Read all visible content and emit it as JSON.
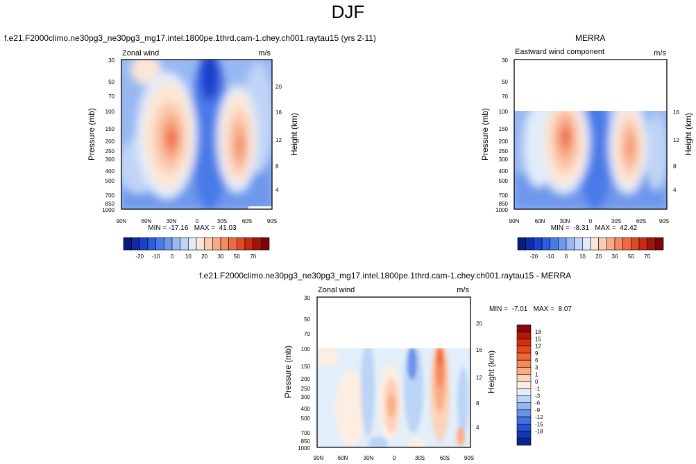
{
  "title": "DJF",
  "panels": [
    {
      "id": "model",
      "title": "f.e21.F2000climo.ne30pg3_ne30pg3_mg17.intel.1800pe.1thrd.cam-1.chey.ch001.raytau15 (yrs 2-11)",
      "left_label": "Zonal wind",
      "right_label": "m/s",
      "stats": "MIN = -17.16   MAX =  41.03"
    },
    {
      "id": "obs",
      "title": "MERRA",
      "left_label": "Eastward wind component",
      "right_label": "m/s",
      "stats": "MIN =  -8.31   MAX =  42.42"
    },
    {
      "id": "diff",
      "title": "f.e21.F2000climo.ne30pg3_ne30pg3_mg17.intel.1800pe.1thrd.cam-1.chey.ch001.raytau15 - MERRA",
      "left_label": "Zonal wind",
      "right_label": "m/s",
      "stats": "MIN =  -7.01   MAX =  8.07"
    }
  ],
  "axes": {
    "ylabel": "Pressure (mb)",
    "y2label": "Height (km)",
    "pressure_ticks": [
      "30",
      "50",
      "70",
      "100",
      "150",
      "200",
      "250",
      "300",
      "400",
      "500",
      "700",
      "850",
      "1000"
    ],
    "height_ticks": [
      "4",
      "8",
      "12",
      "16",
      "20"
    ],
    "lat_ticks": [
      "90N",
      "60N",
      "30N",
      "0",
      "30S",
      "60S",
      "90S"
    ]
  },
  "colorbar_main": {
    "labels": [
      "-20",
      "-10",
      "0",
      "10",
      "20",
      "30",
      "50",
      "70"
    ],
    "colors": [
      "#0a1a78",
      "#0f2ca6",
      "#1a40cc",
      "#2b5de0",
      "#4a7ae8",
      "#6e98ec",
      "#98b8f2",
      "#bfd4f6",
      "#e0ecfb",
      "#fde6d6",
      "#fbcab0",
      "#f8aa88",
      "#f48a64",
      "#ee6a44",
      "#e04a28",
      "#c82b14",
      "#a0150a",
      "#7c0606"
    ]
  },
  "colorbar_diff": {
    "labels": [
      "18",
      "15",
      "12",
      "9",
      "6",
      "3",
      "1",
      "0",
      "-1",
      "-3",
      "-6",
      "-9",
      "-12",
      "-15",
      "-18"
    ],
    "colors": [
      "#8c0808",
      "#b4180c",
      "#d22e14",
      "#e8461e",
      "#f26636",
      "#f6895a",
      "#f9ae86",
      "#fcd2b8",
      "#fdeee2",
      "#e2eefa",
      "#bcd4f6",
      "#94b6f0",
      "#6a92e8",
      "#4470e0",
      "#2650d4",
      "#1436b4",
      "#0b2490"
    ]
  },
  "chart_data": [
    {
      "type": "heatmap",
      "title": "f.e21.F2000climo.ne30pg3_ne30pg3_mg17.intel.1800pe.1thrd.cam-1.chey.ch001.raytau15 (yrs 2-11)",
      "xlabel": "",
      "ylabel": "Pressure (mb)",
      "y2label": "Height (km)",
      "units": "m/s",
      "min": -17.16,
      "max": 41.03,
      "x_range": [
        "90N",
        "90S"
      ],
      "y_range_mb": [
        1000,
        30
      ],
      "features": [
        {
          "lat": 25,
          "p": 200,
          "value": 38
        },
        {
          "lat": -50,
          "p": 200,
          "value": 36
        },
        {
          "lat": -2,
          "p": 30,
          "value": -17
        },
        {
          "lat": 58,
          "p": 30,
          "value": 18
        }
      ]
    },
    {
      "type": "heatmap",
      "title": "MERRA",
      "ylabel": "Pressure (mb)",
      "y2label": "Height (km)",
      "units": "m/s",
      "min": -8.31,
      "max": 42.42,
      "x_range": [
        "90N",
        "90S"
      ],
      "y_range_mb": [
        1000,
        100
      ],
      "features": [
        {
          "lat": 30,
          "p": 200,
          "value": 42
        },
        {
          "lat": -47,
          "p": 250,
          "value": 35
        }
      ]
    },
    {
      "type": "heatmap",
      "title": "f.e21.F2000climo.ne30pg3_ne30pg3_mg17.intel.1800pe.1thrd.cam-1.chey.ch001.raytau15 - MERRA",
      "ylabel": "Pressure (mb)",
      "y2label": "Height (km)",
      "units": "m/s",
      "min": -7.01,
      "max": 8.07,
      "x_range": [
        "90N",
        "90S"
      ],
      "y_range_mb": [
        1000,
        100
      ],
      "features": [
        {
          "lat": -57,
          "p": 150,
          "value": 8
        },
        {
          "lat": -20,
          "p": 130,
          "value": -7
        },
        {
          "lat": 2,
          "p": 350,
          "value": 6
        }
      ]
    }
  ]
}
